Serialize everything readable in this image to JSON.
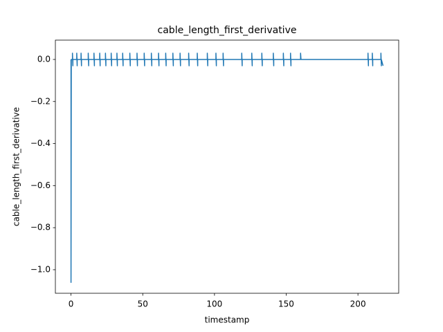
{
  "chart_data": {
    "type": "line",
    "title": "cable_length_first_derivative",
    "x_label": "timestamp",
    "y_label": "cable_length_first_derivative",
    "color": "#1f77b4",
    "x": [
      0,
      0,
      0.2,
      1,
      1,
      1.3,
      1.3,
      4,
      4,
      4.3,
      4.3,
      7,
      7,
      7.3,
      7.3,
      12,
      12,
      12.3,
      12.3,
      16,
      16,
      16.3,
      16.3,
      20,
      20,
      20.3,
      20.3,
      24,
      24,
      24.3,
      24.3,
      28,
      28,
      28.3,
      28.3,
      32,
      32,
      32.3,
      32.3,
      36,
      36,
      36.3,
      36.3,
      41,
      41,
      41.3,
      41.3,
      46,
      46,
      46.3,
      46.3,
      51,
      51,
      51.3,
      51.3,
      56,
      56,
      56.3,
      56.3,
      61,
      61,
      61.3,
      61.3,
      66,
      66,
      66.3,
      66.3,
      71,
      71,
      71.3,
      71.3,
      76,
      76,
      76.3,
      76.3,
      82,
      82,
      82.3,
      82.3,
      88,
      88,
      88.3,
      88.3,
      95,
      95,
      95.3,
      95.3,
      101,
      101,
      101.3,
      101.3,
      106,
      106,
      106.3,
      106.3,
      119,
      119,
      119.3,
      119.3,
      126,
      126,
      126.3,
      126.3,
      133,
      133,
      133.3,
      133.3,
      141,
      141,
      141.3,
      141.3,
      148,
      148,
      148.3,
      148.3,
      153,
      153,
      153.3,
      153.3,
      160,
      160,
      160.3,
      160.3,
      207,
      207,
      207.3,
      207.3,
      210,
      210,
      210.3,
      210.3,
      216,
      216,
      216.3,
      216.3,
      217.5
    ],
    "values": [
      0,
      -1.06,
      0,
      0,
      0.03,
      -0.03,
      0,
      0,
      0.03,
      -0.03,
      0,
      0,
      0.03,
      -0.03,
      0,
      0,
      0.03,
      -0.03,
      0,
      0,
      0.03,
      -0.03,
      0,
      0,
      0.03,
      -0.03,
      0,
      0,
      0.03,
      -0.03,
      0,
      0,
      0.03,
      -0.03,
      0,
      0,
      0.03,
      -0.03,
      0,
      0,
      0.03,
      -0.03,
      0,
      0,
      0.03,
      -0.03,
      0,
      0,
      0.03,
      -0.03,
      0,
      0,
      0.03,
      -0.03,
      0,
      0,
      0.03,
      -0.03,
      0,
      0,
      0.03,
      -0.03,
      0,
      0,
      0.03,
      -0.03,
      0,
      0,
      0.03,
      -0.03,
      0,
      0,
      0.03,
      -0.03,
      0,
      0,
      0.03,
      -0.03,
      0,
      0,
      0.03,
      -0.03,
      0,
      0,
      0.03,
      -0.03,
      0,
      0,
      0.03,
      -0.03,
      0,
      0,
      0.03,
      -0.03,
      0,
      0,
      0.03,
      -0.03,
      0,
      0,
      0.03,
      -0.03,
      0,
      0,
      0.03,
      -0.03,
      0,
      0,
      0.03,
      -0.03,
      0,
      0,
      0.03,
      -0.03,
      0,
      0,
      0.03,
      -0.03,
      0,
      0,
      0.03,
      0,
      0,
      0,
      0.03,
      -0.03,
      0,
      0,
      0.03,
      -0.03,
      0,
      0,
      0.03,
      -0.03,
      0,
      -0.03
    ],
    "xlim": [
      -10.9,
      228.4
    ],
    "ylim": [
      -1.112,
      0.092
    ],
    "xticks": [
      0,
      50,
      100,
      150,
      200
    ],
    "yticks": [
      {
        "value": -1,
        "label": "−1.0"
      },
      {
        "value": -0.8,
        "label": "−0.8"
      },
      {
        "value": -0.6,
        "label": "−0.6"
      },
      {
        "value": -0.4,
        "label": "−0.4"
      },
      {
        "value": -0.2,
        "label": "−0.2"
      },
      {
        "value": 0,
        "label": "0.0"
      }
    ]
  }
}
